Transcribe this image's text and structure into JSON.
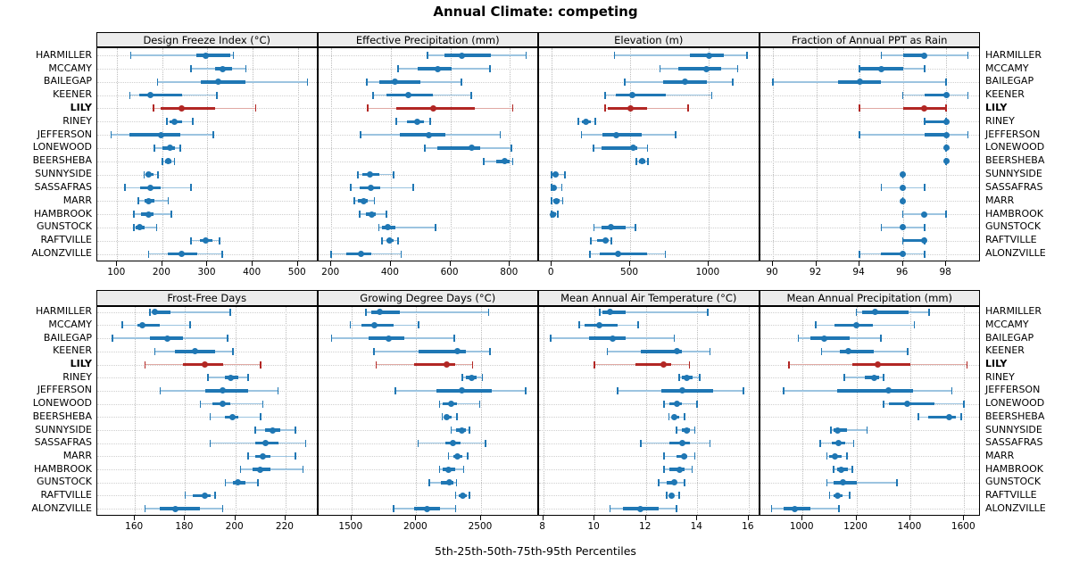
{
  "colors": {
    "series": "#1f77b4",
    "series_light": "#9cc4e0",
    "highlight": "#b22724",
    "highlight_light": "#e0a9a4",
    "grid": "#cfcfcf",
    "strip_bg": "#ececec",
    "border": "#000000"
  },
  "chart_data": {
    "type": "dotplot",
    "title": "Annual Climate: competing",
    "xlabel": "5th-25th-50th-75th-95th Percentiles",
    "percentiles": [
      5,
      25,
      50,
      75,
      95
    ],
    "legend_position": "none",
    "grid": "dotted",
    "stations": [
      "HARMILLER",
      "MCCAMY",
      "BAILEGAP",
      "KEENER",
      "LILY",
      "RINEY",
      "JEFFERSON",
      "LONEWOOD",
      "BEERSHEBA",
      "SUNNYSIDE",
      "SASSAFRAS",
      "MARR",
      "HAMBROOK",
      "GUNSTOCK",
      "RAFTVILLE",
      "ALONZVILLE"
    ],
    "highlight_station": "LILY",
    "panels": [
      {
        "title": "Design Freeze Index (°C)",
        "grid_row": 0,
        "grid_col": 0,
        "xlim": [
          56,
          545
        ],
        "ticks": [
          100,
          200,
          300,
          400,
          500
        ],
        "tick_labels": [
          "100",
          "200",
          "300",
          "400",
          "500"
        ],
        "values": [
          [
            130,
            276,
            296,
            351,
            357
          ],
          [
            263,
            316,
            333,
            354,
            385
          ],
          [
            189,
            286,
            323,
            383,
            521
          ],
          [
            128,
            149,
            173,
            244,
            321
          ],
          [
            180,
            197,
            243,
            317,
            407
          ],
          [
            210,
            217,
            227,
            243,
            267
          ],
          [
            87,
            127,
            197,
            240,
            313
          ],
          [
            183,
            200,
            217,
            227,
            240
          ],
          [
            200,
            207,
            213,
            220,
            227
          ],
          [
            160,
            163,
            170,
            180,
            190
          ],
          [
            117,
            150,
            173,
            197,
            263
          ],
          [
            147,
            160,
            170,
            183,
            213
          ],
          [
            137,
            153,
            170,
            180,
            220
          ],
          [
            137,
            140,
            150,
            160,
            187
          ],
          [
            263,
            283,
            297,
            310,
            327
          ],
          [
            170,
            213,
            243,
            277,
            333
          ]
        ]
      },
      {
        "title": "Effective Precipitation (mm)",
        "grid_row": 0,
        "grid_col": 1,
        "xlim": [
          156,
          898
        ],
        "ticks": [
          200,
          400,
          600,
          800
        ],
        "tick_labels": [
          "200",
          "400",
          "600",
          "800"
        ],
        "values": [
          [
            523,
            580,
            638,
            735,
            855
          ],
          [
            425,
            490,
            558,
            605,
            733
          ],
          [
            320,
            360,
            413,
            500,
            638
          ],
          [
            340,
            385,
            458,
            540,
            670
          ],
          [
            323,
            418,
            543,
            683,
            810
          ],
          [
            418,
            455,
            488,
            510,
            532
          ],
          [
            298,
            430,
            528,
            583,
            768
          ],
          [
            515,
            555,
            672,
            700,
            805
          ],
          [
            713,
            755,
            783,
            800,
            810
          ],
          [
            290,
            305,
            330,
            360,
            410
          ],
          [
            265,
            295,
            333,
            365,
            475
          ],
          [
            278,
            290,
            310,
            323,
            345
          ],
          [
            295,
            315,
            335,
            350,
            385
          ],
          [
            360,
            370,
            390,
            415,
            550
          ],
          [
            370,
            385,
            395,
            410,
            425
          ],
          [
            200,
            250,
            300,
            335,
            435
          ]
        ]
      },
      {
        "title": "Elevation (m)",
        "grid_row": 0,
        "grid_col": 2,
        "xlim": [
          -81,
          1328
        ],
        "ticks": [
          0,
          500,
          1000
        ],
        "tick_labels": [
          "0",
          "500",
          "1000"
        ],
        "values": [
          [
            400,
            880,
            1005,
            1100,
            1245
          ],
          [
            690,
            805,
            985,
            1080,
            1185
          ],
          [
            465,
            710,
            850,
            990,
            1155
          ],
          [
            340,
            410,
            515,
            725,
            1020
          ],
          [
            340,
            358,
            500,
            610,
            870
          ],
          [
            168,
            192,
            220,
            250,
            278
          ],
          [
            190,
            325,
            410,
            575,
            790
          ],
          [
            265,
            315,
            520,
            545,
            610
          ],
          [
            540,
            555,
            575,
            595,
            615
          ],
          [
            0,
            5,
            25,
            40,
            85
          ],
          [
            0,
            3,
            15,
            30,
            65
          ],
          [
            0,
            10,
            30,
            50,
            70
          ],
          [
            0,
            2,
            10,
            25,
            40
          ],
          [
            268,
            320,
            380,
            470,
            535
          ],
          [
            250,
            290,
            345,
            365,
            380
          ],
          [
            245,
            305,
            420,
            610,
            725
          ]
        ]
      },
      {
        "title": "Fraction of Annual PPT as Rain",
        "grid_row": 0,
        "grid_col": 3,
        "xlim": [
          89.4,
          99.6
        ],
        "ticks": [
          90,
          92,
          94,
          96,
          98
        ],
        "tick_labels": [
          "90",
          "92",
          "94",
          "96",
          "98"
        ],
        "values": [
          [
            95,
            96,
            97,
            97,
            99
          ],
          [
            94,
            94,
            95,
            96,
            97
          ],
          [
            90,
            93,
            94,
            95,
            98
          ],
          [
            96,
            97,
            98,
            98,
            99
          ],
          [
            94,
            96,
            97,
            98,
            98
          ],
          [
            97,
            97,
            98,
            98,
            98
          ],
          [
            94,
            97,
            98,
            98,
            99
          ],
          [
            98,
            98,
            98,
            98,
            98
          ],
          [
            98,
            98,
            98,
            98,
            98
          ],
          [
            96,
            96,
            96,
            96,
            96
          ],
          [
            95,
            96,
            96,
            96,
            97
          ],
          [
            96,
            96,
            96,
            96,
            96
          ],
          [
            96,
            97,
            97,
            97,
            98
          ],
          [
            95,
            96,
            96,
            96,
            97
          ],
          [
            96,
            96,
            97,
            97,
            97
          ],
          [
            94,
            95,
            96,
            96,
            97
          ]
        ]
      },
      {
        "title": "Frost-Free Days",
        "grid_row": 1,
        "grid_col": 0,
        "xlim": [
          145,
          233
        ],
        "ticks": [
          160,
          180,
          200,
          220
        ],
        "tick_labels": [
          "160",
          "180",
          "200",
          "220"
        ],
        "values": [
          [
            166,
            167,
            168,
            174,
            198
          ],
          [
            155,
            161,
            163,
            170,
            182
          ],
          [
            151,
            166,
            173,
            179,
            197
          ],
          [
            168,
            176,
            184,
            192,
            199
          ],
          [
            164,
            179,
            188,
            195,
            210
          ],
          [
            189,
            196,
            198,
            201,
            205
          ],
          [
            170,
            188,
            195,
            205,
            217
          ],
          [
            186,
            191,
            195,
            198,
            211
          ],
          [
            190,
            196,
            199,
            201,
            210
          ],
          [
            208,
            212,
            215,
            218,
            224
          ],
          [
            190,
            208,
            212,
            217,
            228
          ],
          [
            205,
            208,
            211,
            214,
            224
          ],
          [
            202,
            207,
            210,
            214,
            227
          ],
          [
            196,
            199,
            201,
            204,
            209
          ],
          [
            180,
            183,
            188,
            190,
            192
          ],
          [
            164,
            170,
            176,
            186,
            195
          ]
        ]
      },
      {
        "title": "Growing Degree Days (°C)",
        "grid_row": 1,
        "grid_col": 1,
        "xlim": [
          1243,
          2948
        ],
        "ticks": [
          1500,
          2000,
          2500
        ],
        "tick_labels": [
          "1500",
          "2000",
          "2500"
        ],
        "values": [
          [
            1610,
            1650,
            1720,
            1870,
            2560
          ],
          [
            1490,
            1575,
            1675,
            1825,
            2020
          ],
          [
            1345,
            1630,
            1790,
            1905,
            2295
          ],
          [
            1675,
            2015,
            2315,
            2380,
            2570
          ],
          [
            1690,
            1985,
            2235,
            2300,
            2435
          ],
          [
            2355,
            2385,
            2430,
            2465,
            2510
          ],
          [
            1840,
            2155,
            2350,
            2580,
            2845
          ],
          [
            2180,
            2205,
            2270,
            2315,
            2490
          ],
          [
            2200,
            2215,
            2235,
            2275,
            2315
          ],
          [
            2270,
            2305,
            2350,
            2380,
            2410
          ],
          [
            2015,
            2225,
            2285,
            2345,
            2535
          ],
          [
            2250,
            2285,
            2320,
            2355,
            2395
          ],
          [
            2180,
            2205,
            2250,
            2300,
            2365
          ],
          [
            2100,
            2190,
            2255,
            2285,
            2310
          ],
          [
            2305,
            2330,
            2360,
            2390,
            2410
          ],
          [
            1825,
            1985,
            2085,
            2180,
            2305
          ]
        ]
      },
      {
        "title": "Mean Annual Air Temperature (°C)",
        "grid_row": 1,
        "grid_col": 2,
        "xlim": [
          7.84,
          16.44
        ],
        "ticks": [
          8,
          10,
          12,
          14,
          16
        ],
        "tick_labels": [
          "8",
          "10",
          "12",
          "14",
          "16"
        ],
        "values": [
          [
            10.2,
            10.3,
            10.6,
            11.2,
            14.4
          ],
          [
            9.4,
            9.6,
            10.2,
            10.9,
            11.7
          ],
          [
            8.3,
            9.8,
            10.7,
            11.2,
            13.1
          ],
          [
            10.5,
            11.8,
            13.2,
            13.4,
            14.5
          ],
          [
            10.0,
            11.6,
            12.7,
            13.0,
            13.7
          ],
          [
            13.3,
            13.4,
            13.6,
            13.8,
            14.1
          ],
          [
            10.9,
            12.6,
            13.4,
            14.6,
            15.8
          ],
          [
            12.7,
            12.9,
            13.2,
            13.4,
            14.0
          ],
          [
            12.9,
            13.0,
            13.1,
            13.3,
            13.5
          ],
          [
            13.2,
            13.4,
            13.6,
            13.7,
            13.9
          ],
          [
            11.8,
            12.9,
            13.4,
            13.7,
            14.5
          ],
          [
            12.7,
            13.2,
            13.5,
            13.6,
            13.9
          ],
          [
            12.7,
            12.9,
            13.3,
            13.5,
            13.8
          ],
          [
            12.5,
            12.8,
            13.1,
            13.2,
            13.5
          ],
          [
            12.8,
            12.9,
            13.0,
            13.1,
            13.3
          ],
          [
            10.6,
            11.1,
            11.8,
            12.5,
            13.2
          ]
        ]
      },
      {
        "title": "Mean Annual Precipitation (mm)",
        "grid_row": 1,
        "grid_col": 3,
        "xlim": [
          842,
          1662
        ],
        "ticks": [
          1000,
          1200,
          1400,
          1600
        ],
        "tick_labels": [
          "1000",
          "1200",
          "1400",
          "1600"
        ],
        "values": [
          [
            1200,
            1220,
            1270,
            1395,
            1470
          ],
          [
            1050,
            1120,
            1200,
            1260,
            1415
          ],
          [
            985,
            1030,
            1080,
            1175,
            1290
          ],
          [
            1070,
            1140,
            1170,
            1265,
            1390
          ],
          [
            950,
            1185,
            1280,
            1400,
            1610
          ],
          [
            1155,
            1230,
            1265,
            1285,
            1300
          ],
          [
            930,
            1130,
            1320,
            1410,
            1555
          ],
          [
            1300,
            1320,
            1390,
            1490,
            1600
          ],
          [
            1430,
            1465,
            1545,
            1570,
            1590
          ],
          [
            1105,
            1115,
            1130,
            1165,
            1240
          ],
          [
            1065,
            1110,
            1135,
            1160,
            1190
          ],
          [
            1090,
            1100,
            1120,
            1145,
            1165
          ],
          [
            1115,
            1130,
            1145,
            1170,
            1185
          ],
          [
            1090,
            1115,
            1150,
            1200,
            1350
          ],
          [
            1100,
            1115,
            1130,
            1150,
            1175
          ],
          [
            885,
            930,
            970,
            1030,
            1135
          ]
        ]
      }
    ]
  }
}
